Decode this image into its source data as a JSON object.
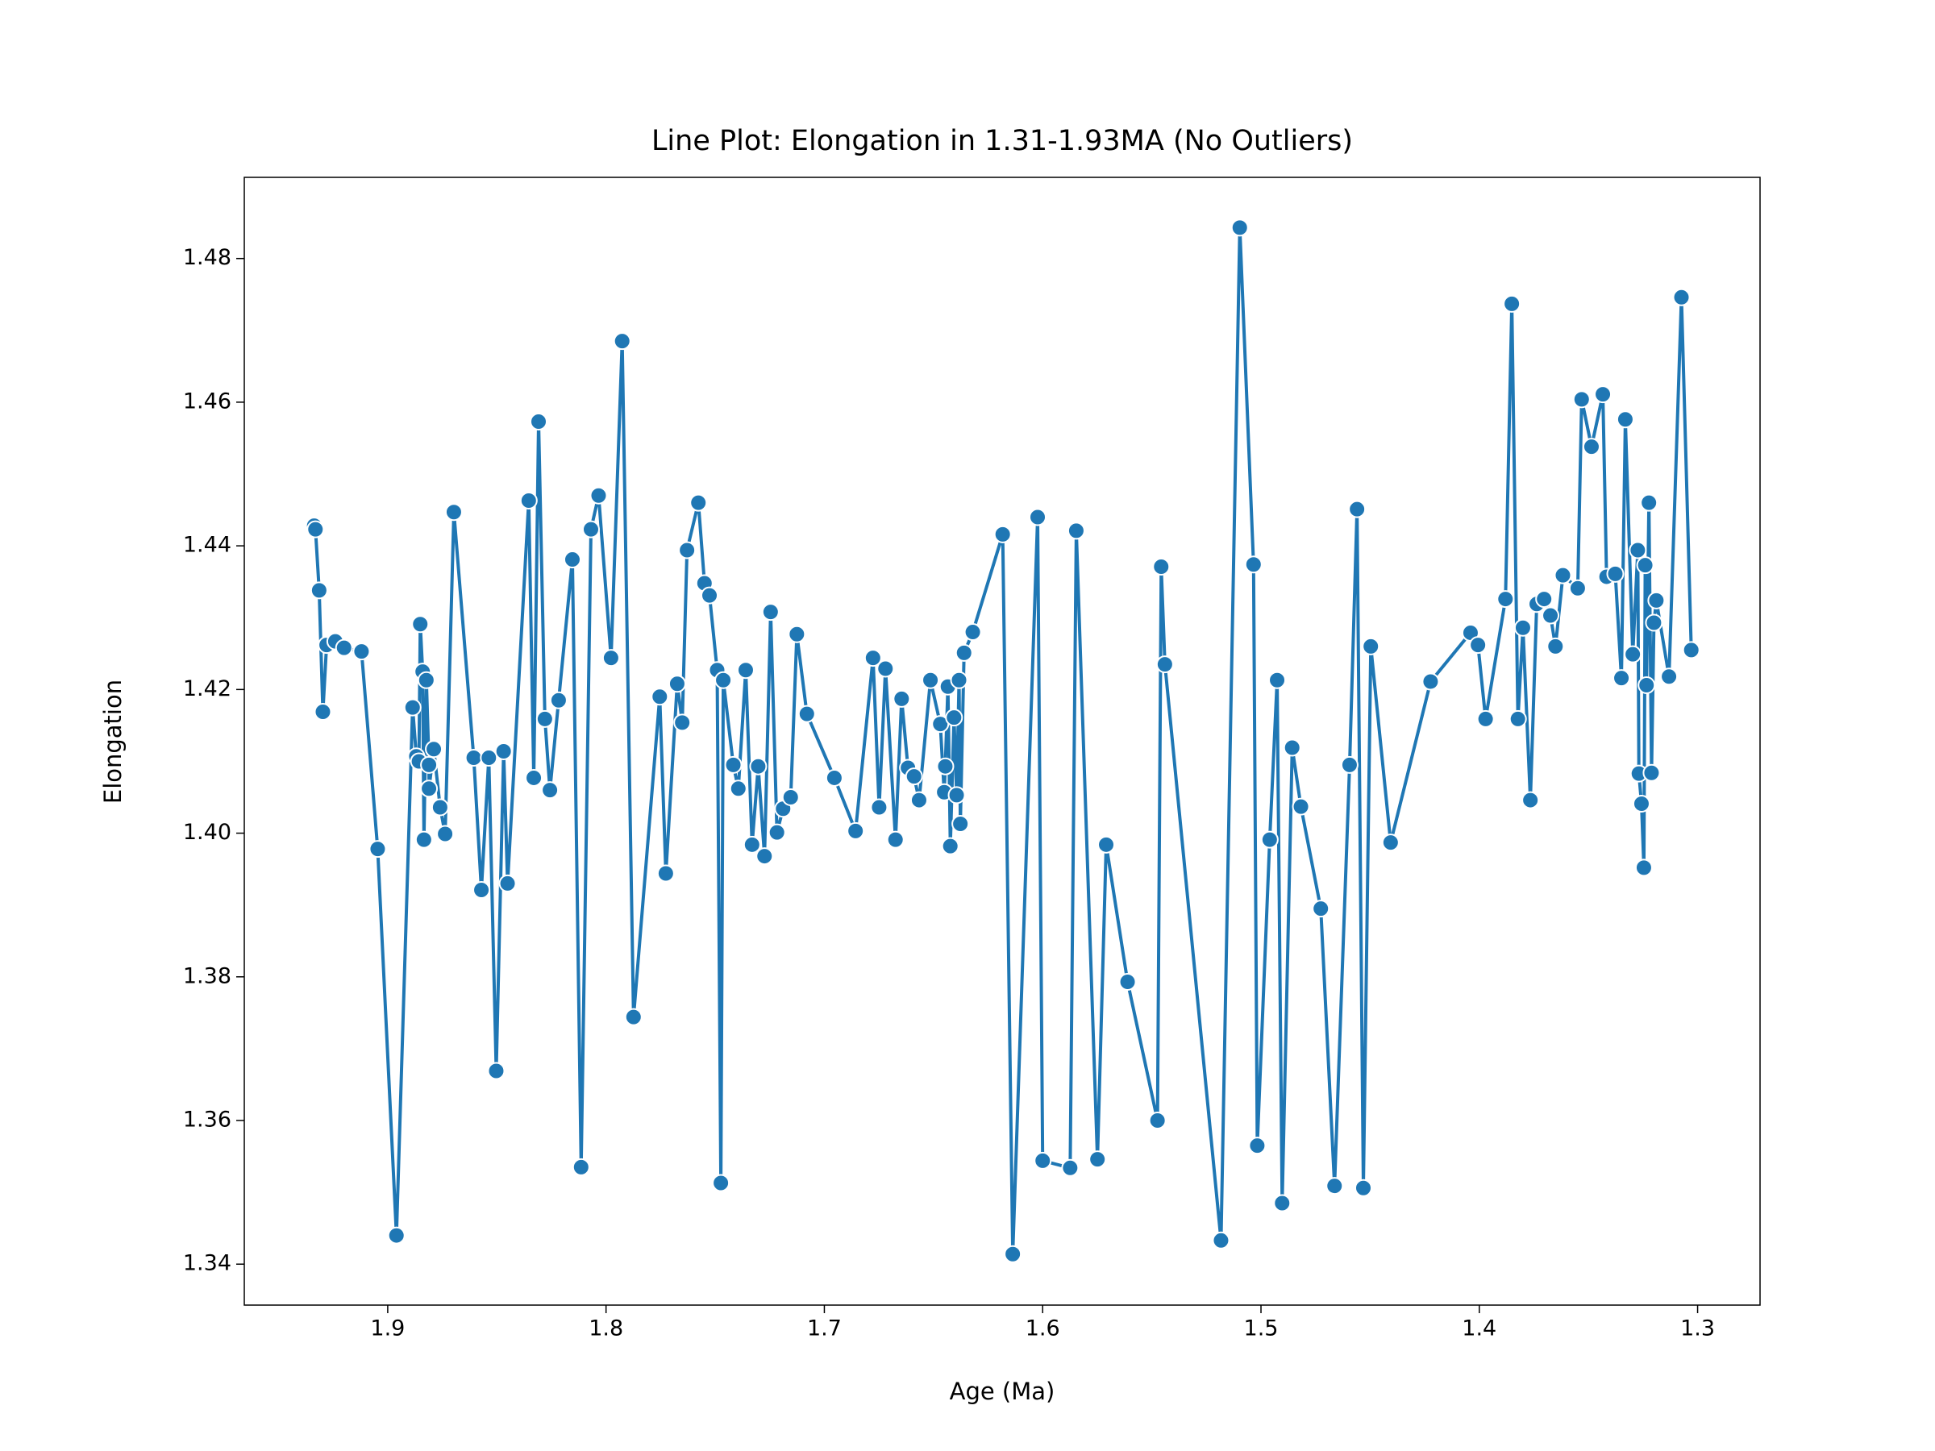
{
  "chart_data": {
    "type": "line",
    "title": "Line Plot: Elongation in 1.31-1.93MA (No Outliers)",
    "x_label": "Age (Ma)",
    "y_label": "Elongation",
    "color": "#1f77b4",
    "marker_edge_color": "#ffffff",
    "x_inverted": true,
    "grid": false,
    "xlim": [
      1.9657,
      1.2714
    ],
    "ylim": [
      1.3343,
      1.4913
    ],
    "xticks": [
      1.9,
      1.8,
      1.7,
      1.6,
      1.5,
      1.4,
      1.3
    ],
    "yticks": [
      1.34,
      1.36,
      1.38,
      {
        "value": 1.4,
        "label": "1.40"
      },
      1.42,
      1.44,
      1.46,
      1.48
    ],
    "x": [
      1.9337,
      1.9331,
      1.9314,
      1.9297,
      1.928,
      1.924,
      1.92,
      1.912,
      1.9046,
      1.896,
      1.8886,
      1.8869,
      1.8857,
      1.8851,
      1.884,
      1.8834,
      1.8823,
      1.8811,
      1.8811,
      1.8789,
      1.876,
      1.8737,
      1.8697,
      1.8606,
      1.8571,
      1.8537,
      1.8503,
      1.8469,
      1.8451,
      1.8354,
      1.8331,
      1.8309,
      1.828,
      1.8257,
      1.8217,
      1.8154,
      1.8114,
      1.8069,
      1.8034,
      1.7977,
      1.7926,
      1.7874,
      1.7754,
      1.7726,
      1.7674,
      1.7651,
      1.7629,
      1.7577,
      1.7549,
      1.7526,
      1.7491,
      1.7474,
      1.7463,
      1.7417,
      1.7394,
      1.736,
      1.7331,
      1.7303,
      1.7274,
      1.7246,
      1.7217,
      1.7189,
      1.7154,
      1.7126,
      1.708,
      1.6954,
      1.6857,
      1.6777,
      1.6749,
      1.672,
      1.6674,
      1.6646,
      1.6617,
      1.6589,
      1.6566,
      1.6514,
      1.6469,
      1.6451,
      1.6446,
      1.6434,
      1.6423,
      1.6406,
      1.6394,
      1.6383,
      1.6377,
      1.636,
      1.632,
      1.6183,
      1.6137,
      1.6023,
      1.6,
      1.5874,
      1.5846,
      1.5749,
      1.5709,
      1.5611,
      1.5474,
      1.5457,
      1.544,
      1.5183,
      1.5097,
      1.5034,
      1.5017,
      1.496,
      1.4926,
      1.4903,
      1.4857,
      1.4817,
      1.4726,
      1.4663,
      1.4594,
      1.456,
      1.4531,
      1.4497,
      1.4406,
      1.4223,
      1.404,
      1.4006,
      1.3971,
      1.388,
      1.3851,
      1.3823,
      1.38,
      1.3766,
      1.3737,
      1.3703,
      1.3674,
      1.3651,
      1.3617,
      1.3549,
      1.3531,
      1.3486,
      1.3434,
      1.3417,
      1.3377,
      1.3349,
      1.3331,
      1.3297,
      1.3274,
      1.3269,
      1.3257,
      1.3246,
      1.324,
      1.3234,
      1.3223,
      1.3211,
      1.32,
      1.3189,
      1.3131,
      1.3074,
      1.3029
    ],
    "values": [
      1.4428,
      1.4423,
      1.4338,
      1.4169,
      1.4262,
      1.4267,
      1.4258,
      1.4253,
      1.3978,
      1.344,
      1.4175,
      1.4107,
      1.41,
      1.4291,
      1.4225,
      1.3991,
      1.4213,
      1.4095,
      1.4062,
      1.4117,
      1.4036,
      1.3999,
      1.4447,
      1.4105,
      1.3921,
      1.4105,
      1.3669,
      1.4114,
      1.393,
      1.4463,
      1.4077,
      1.4573,
      1.4159,
      1.406,
      1.4185,
      1.4381,
      1.3535,
      1.4423,
      1.447,
      1.4244,
      1.4685,
      1.3744,
      1.419,
      1.3944,
      1.4208,
      1.4154,
      1.4394,
      1.446,
      1.4348,
      1.4331,
      1.4227,
      1.3513,
      1.4213,
      1.4095,
      1.4062,
      1.4227,
      1.3984,
      1.4093,
      1.3968,
      1.4308,
      1.4001,
      1.4034,
      1.405,
      1.4277,
      1.4166,
      1.4077,
      1.4003,
      1.4244,
      1.4036,
      1.4229,
      1.3991,
      1.4187,
      1.4091,
      1.4079,
      1.4046,
      1.4213,
      1.4152,
      1.4057,
      1.4093,
      1.4204,
      1.3982,
      1.4161,
      1.4053,
      1.4213,
      1.4013,
      1.4251,
      1.428,
      1.4416,
      1.3414,
      1.444,
      1.3544,
      1.3534,
      1.4421,
      1.3546,
      1.3984,
      1.3793,
      1.36,
      1.4371,
      1.4235,
      1.3433,
      1.4843,
      1.4374,
      1.3565,
      1.3991,
      1.4213,
      1.3485,
      1.4119,
      1.4037,
      1.3895,
      1.3509,
      1.4095,
      1.4451,
      1.3506,
      1.426,
      1.3987,
      1.4211,
      1.4279,
      1.4262,
      1.4159,
      1.4326,
      1.4737,
      1.4159,
      1.4286,
      1.4046,
      1.4319,
      1.4326,
      1.4303,
      1.426,
      1.4359,
      1.4341,
      1.4604,
      1.4538,
      1.4611,
      1.4357,
      1.4361,
      1.4216,
      1.4576,
      1.4249,
      1.4394,
      1.4083,
      1.4041,
      1.3952,
      1.4373,
      1.4206,
      1.446,
      1.4084,
      1.4293,
      1.4324,
      1.4218,
      1.4746,
      1.4255
    ]
  }
}
